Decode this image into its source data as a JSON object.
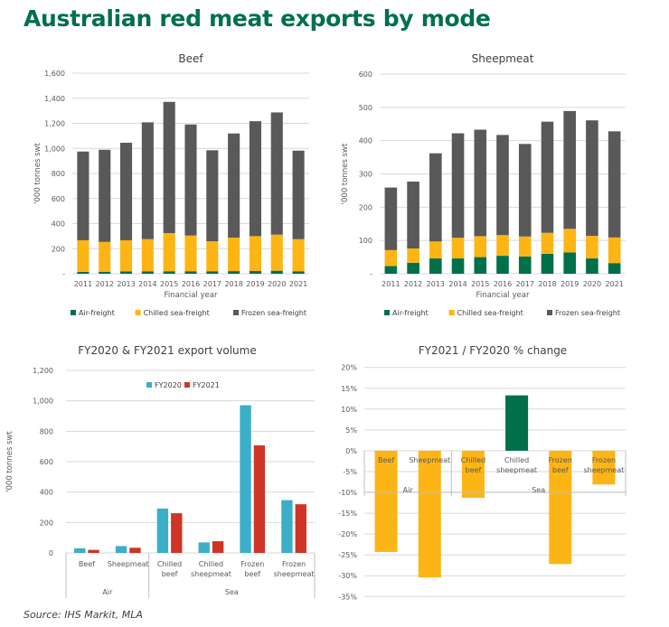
{
  "title": "Australian red meat exports by mode",
  "source": "Source: IHS Markit, MLA",
  "colors": {
    "title": "#00704A",
    "air": "#00704A",
    "chilled": "#FDB515",
    "frozen": "#595959",
    "fy2020": "#3BAFC8",
    "fy2021": "#CF3526",
    "pct_negative": "#FDB515",
    "pct_positive": "#00704A"
  },
  "chart_data": [
    {
      "id": "beef",
      "type": "bar",
      "stacked": true,
      "title": "Beef",
      "xlabel": "Financial year",
      "ylabel": "'000 tonnes swt",
      "ylim": [
        0,
        1600
      ],
      "yticks": [
        0,
        200,
        400,
        600,
        800,
        1000,
        1200,
        1400,
        1600
      ],
      "ytick_labels": [
        "-",
        "200",
        "400",
        "600",
        "800",
        "1,000",
        "1,200",
        "1,400",
        "1,600"
      ],
      "grid": true,
      "legend": "bottom",
      "categories": [
        "2011",
        "2012",
        "2013",
        "2014",
        "2015",
        "2016",
        "2017",
        "2018",
        "2019",
        "2020",
        "2021"
      ],
      "series": [
        {
          "name": "Air-freight",
          "color_key": "air",
          "values": [
            15,
            16,
            18,
            18,
            20,
            20,
            20,
            21,
            23,
            24,
            20
          ]
        },
        {
          "name": "Chilled sea-freight",
          "color_key": "chilled",
          "values": [
            252,
            238,
            249,
            258,
            304,
            285,
            239,
            267,
            277,
            288,
            256
          ]
        },
        {
          "name": "Frozen sea-freight",
          "color_key": "frozen",
          "values": [
            708,
            735,
            778,
            932,
            1047,
            886,
            726,
            831,
            917,
            975,
            706
          ]
        }
      ]
    },
    {
      "id": "sheepmeat",
      "type": "bar",
      "stacked": true,
      "title": "Sheepmeat",
      "xlabel": "Financial year",
      "ylabel": "'000 tonnes swt",
      "ylim": [
        0,
        600
      ],
      "yticks": [
        0,
        100,
        200,
        300,
        400,
        500,
        600
      ],
      "ytick_labels": [
        "-",
        "100",
        "200",
        "300",
        "400",
        "500",
        "600"
      ],
      "grid": true,
      "legend": "bottom",
      "categories": [
        "2011",
        "2012",
        "2013",
        "2014",
        "2015",
        "2016",
        "2017",
        "2018",
        "2019",
        "2020",
        "2021"
      ],
      "series": [
        {
          "name": "Air-freight",
          "color_key": "air",
          "values": [
            23,
            33,
            46,
            46,
            50,
            54,
            52,
            60,
            64,
            46,
            32
          ]
        },
        {
          "name": "Chilled sea-freight",
          "color_key": "chilled",
          "values": [
            48,
            43,
            51,
            62,
            63,
            62,
            60,
            63,
            71,
            68,
            77
          ]
        },
        {
          "name": "Frozen sea-freight",
          "color_key": "frozen",
          "values": [
            188,
            201,
            265,
            314,
            320,
            301,
            278,
            334,
            354,
            347,
            319
          ]
        }
      ]
    },
    {
      "id": "volume",
      "type": "bar",
      "stacked": false,
      "title": "FY2020 & FY2021 export volume",
      "ylabel": "'000 tonnes swt",
      "ylim": [
        0,
        1200
      ],
      "yticks": [
        0,
        200,
        400,
        600,
        800,
        1000,
        1200
      ],
      "ytick_labels": [
        "0",
        "200",
        "400",
        "600",
        "800",
        "1,000",
        "1,200"
      ],
      "grid": true,
      "legend": "top",
      "categories": [
        {
          "label": [
            "Beef"
          ],
          "group": "Air"
        },
        {
          "label": [
            "Sheepmeat"
          ],
          "group": "Air"
        },
        {
          "label": [
            "Chilled",
            "beef"
          ],
          "group": "Sea"
        },
        {
          "label": [
            "Chilled",
            "sheepmeat"
          ],
          "group": "Sea"
        },
        {
          "label": [
            "Frozen",
            "beef"
          ],
          "group": "Sea"
        },
        {
          "label": [
            "Frozen",
            "sheepmeat"
          ],
          "group": "Sea"
        }
      ],
      "groups": [
        {
          "name": "Air",
          "count": 2
        },
        {
          "name": "Sea",
          "count": 4
        }
      ],
      "series": [
        {
          "name": "FY2020",
          "color_key": "fy2020",
          "values": [
            30,
            45,
            292,
            69,
            971,
            347
          ]
        },
        {
          "name": "FY2021",
          "color_key": "fy2021",
          "values": [
            20,
            34,
            261,
            77,
            707,
            320
          ]
        }
      ]
    },
    {
      "id": "pct_change",
      "type": "bar",
      "stacked": false,
      "title": "FY2021 / FY2020 % change",
      "ylim": [
        -35,
        20
      ],
      "yticks": [
        -35,
        -30,
        -25,
        -20,
        -15,
        -10,
        -5,
        0,
        5,
        10,
        15,
        20
      ],
      "ytick_labels": [
        "-35%",
        "-30%",
        "-25%",
        "-20%",
        "-15%",
        "-10%",
        "-5%",
        "0%",
        "5%",
        "10%",
        "15%",
        "20%"
      ],
      "grid": true,
      "legend": "none",
      "categories": [
        {
          "label": [
            "Beef"
          ],
          "group": "Air"
        },
        {
          "label": [
            "Sheepmeat"
          ],
          "group": "Air"
        },
        {
          "label": [
            "Chilled",
            "beef"
          ],
          "group": "Sea"
        },
        {
          "label": [
            "Chilled",
            "sheepmeat"
          ],
          "group": "Sea"
        },
        {
          "label": [
            "Frozen",
            "beef"
          ],
          "group": "Sea"
        },
        {
          "label": [
            "Frozen",
            "sheepmeat"
          ],
          "group": "Sea"
        }
      ],
      "groups": [
        {
          "name": "Air",
          "count": 2
        },
        {
          "name": "Sea",
          "count": 4
        }
      ],
      "series": [
        {
          "name": "% change",
          "values": [
            -24.3,
            -30.4,
            -11.3,
            13.3,
            -27.2,
            -8.1
          ]
        }
      ]
    }
  ]
}
